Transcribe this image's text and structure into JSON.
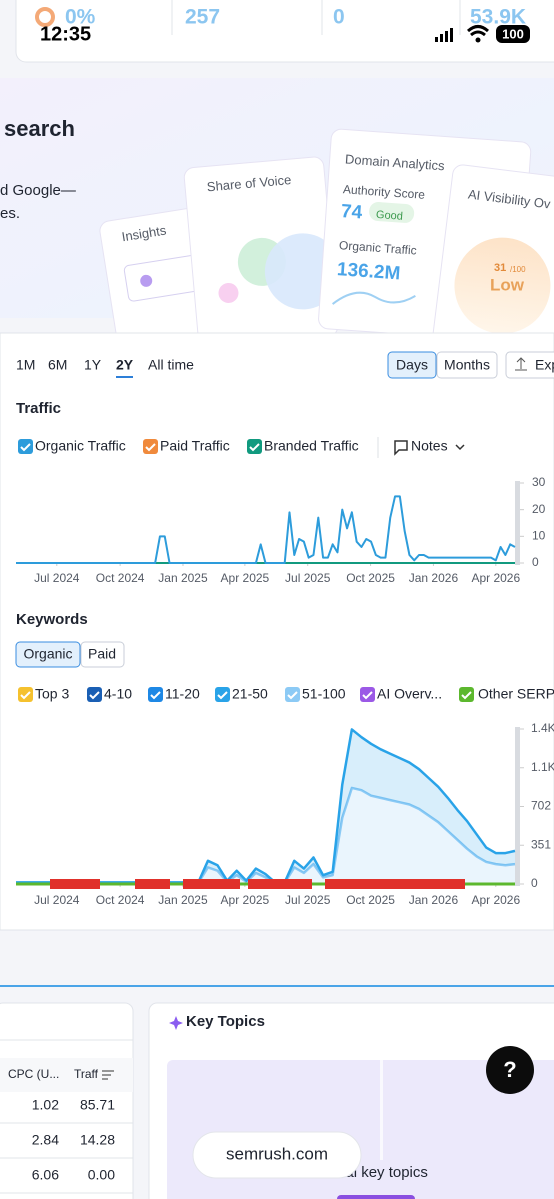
{
  "status_bar": {
    "time": "12:35",
    "battery": "100"
  },
  "stats": [
    "0%",
    "257",
    "0",
    "53.9K"
  ],
  "banner": {
    "title": "search",
    "text_lines": [
      "d Google—",
      "es."
    ],
    "cards": {
      "insights": "Insights",
      "share_of_voice": "Share of Voice",
      "domain_analytics": "Domain Analytics",
      "authority_score_label": "Authority Score",
      "authority_score": "74",
      "authority_badge": "Good",
      "organic_traffic_label": "Organic Traffic",
      "organic_traffic": "136.2M",
      "ai_visibility": "AI Visibility Ov",
      "ai_score": "31",
      "ai_score_max": "/100",
      "ai_level": "Low"
    }
  },
  "periods": {
    "items": [
      "1M",
      "6M",
      "1Y",
      "2Y",
      "All time"
    ],
    "active": 3
  },
  "view_buttons": [
    "Days",
    "Months",
    "Exp"
  ],
  "traffic": {
    "title": "Traffic",
    "notes": "Notes",
    "legend": [
      {
        "name": "Organic Traffic",
        "color": "#2d9cdb"
      },
      {
        "name": "Paid Traffic",
        "color": "#f08a3c"
      },
      {
        "name": "Branded Traffic",
        "color": "#119a7f"
      }
    ],
    "xlim": [
      0,
      104
    ],
    "ylim": [
      0,
      30
    ],
    "yticks": [
      0,
      10,
      20,
      30
    ],
    "xticks": [
      {
        "value": 8.5,
        "label": "Jul 2024"
      },
      {
        "value": 21.7,
        "label": "Oct 2024"
      },
      {
        "value": 34.8,
        "label": "Jan 2025"
      },
      {
        "value": 47.7,
        "label": "Apr 2025"
      },
      {
        "value": 60.8,
        "label": "Jul 2025"
      },
      {
        "value": 73.9,
        "label": "Oct 2025"
      },
      {
        "value": 87,
        "label": "Jan 2026"
      },
      {
        "value": 100,
        "label": "Apr 2026"
      }
    ],
    "organic_values": [
      0,
      0,
      0,
      0,
      0,
      0,
      0,
      0,
      0,
      0,
      0,
      0,
      0,
      0,
      0,
      0,
      0,
      0,
      0,
      0,
      0,
      0,
      0,
      0,
      0,
      0,
      0,
      0,
      0,
      0,
      10,
      10,
      0,
      0,
      0,
      0,
      0,
      0,
      0,
      0,
      0,
      0,
      0,
      0,
      0,
      0,
      0,
      0,
      0,
      0,
      0,
      7,
      0,
      0,
      0,
      0,
      0,
      19,
      3,
      9,
      8,
      2,
      3,
      17,
      2,
      2,
      7,
      4,
      20,
      13,
      19,
      8,
      6,
      9,
      8,
      3,
      2,
      2,
      17,
      25,
      25,
      12,
      3,
      1,
      3,
      3,
      2,
      2,
      2,
      2,
      2,
      2,
      2,
      2,
      2,
      2,
      2,
      2,
      2,
      2,
      1,
      6,
      3,
      7,
      6
    ]
  },
  "keywords": {
    "title": "Keywords",
    "tabs": [
      "Organic",
      "Paid"
    ],
    "legend": [
      {
        "name": "Top 3",
        "color": "#f5c12e"
      },
      {
        "name": "4-10",
        "color": "#1a5fb4"
      },
      {
        "name": "11-20",
        "color": "#1e88e5"
      },
      {
        "name": "21-50",
        "color": "#29a3e8"
      },
      {
        "name": "51-100",
        "color": "#8ccaf5"
      },
      {
        "name": "AI Overv...",
        "color": "#9b59e6"
      },
      {
        "name": "Other SERP",
        "color": "#5cb82e"
      }
    ],
    "xlim": [
      0,
      104
    ],
    "ylim": [
      0,
      1404
    ],
    "yticks": [
      0,
      351,
      702,
      {
        "value": 1053,
        "label": "1.1K"
      },
      {
        "value": 1404,
        "label": "1.4K"
      }
    ],
    "xticks": [
      {
        "value": 8.5,
        "label": "Jul 2024"
      },
      {
        "value": 21.7,
        "label": "Oct 2024"
      },
      {
        "value": 34.8,
        "label": "Jan 2025"
      },
      {
        "value": 47.7,
        "label": "Apr 2025"
      },
      {
        "value": 60.8,
        "label": "Jul 2025"
      },
      {
        "value": 73.9,
        "label": "Oct 2025"
      },
      {
        "value": 87,
        "label": "Jan 2026"
      },
      {
        "value": 100,
        "label": "Apr 2026"
      }
    ],
    "x": [
      0,
      2,
      4,
      6,
      8,
      10,
      12,
      14,
      16,
      18,
      20,
      22,
      24,
      26,
      28,
      30,
      32,
      34,
      36,
      38,
      40,
      42,
      44,
      46,
      48,
      50,
      52,
      54,
      56,
      58,
      60,
      62,
      64,
      66,
      68,
      70,
      72,
      74,
      76,
      78,
      80,
      82,
      84,
      86,
      88,
      90,
      92,
      94,
      96,
      98,
      100,
      102,
      104
    ],
    "series": [
      {
        "name": "51-100",
        "color": "#8ccaf5",
        "values": [
          10,
          10,
          10,
          10,
          10,
          10,
          10,
          10,
          10,
          10,
          10,
          10,
          10,
          10,
          10,
          10,
          10,
          10,
          10,
          10,
          150,
          120,
          20,
          80,
          20,
          100,
          60,
          10,
          10,
          150,
          100,
          180,
          60,
          80,
          600,
          870,
          850,
          800,
          780,
          760,
          740,
          720,
          680,
          620,
          560,
          480,
          400,
          320,
          250,
          200,
          180,
          170,
          180
        ]
      },
      {
        "name": "21-50",
        "color": "#29a3e8",
        "values": [
          5,
          5,
          5,
          5,
          5,
          5,
          5,
          5,
          5,
          5,
          5,
          5,
          5,
          5,
          5,
          5,
          5,
          5,
          5,
          5,
          60,
          50,
          10,
          40,
          10,
          40,
          30,
          5,
          5,
          60,
          40,
          60,
          20,
          30,
          300,
          530,
          480,
          470,
          440,
          420,
          400,
          380,
          360,
          340,
          320,
          300,
          270,
          250,
          200,
          130,
          100,
          110,
          120
        ]
      }
    ]
  },
  "table": {
    "headers": [
      "CPC (U...",
      "Traff"
    ],
    "rows": [
      [
        "1.02",
        "85.71"
      ],
      [
        "2.84",
        "14.28"
      ],
      [
        "6.06",
        "0.00"
      ]
    ]
  },
  "key_topics": {
    "title": "Key Topics",
    "subtitle": "dex.ai key topics"
  },
  "url_pill": "semrush.com",
  "help_button": "?"
}
